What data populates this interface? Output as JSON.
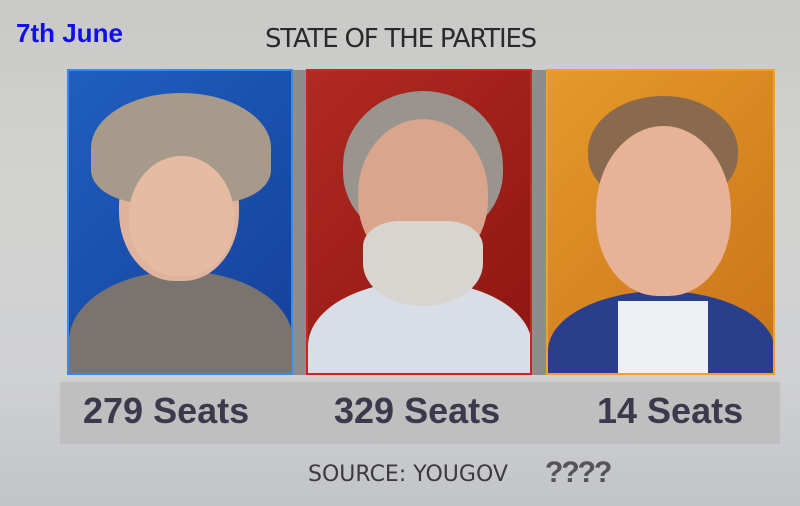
{
  "date_label": "7th June",
  "title": "STATE OF THE PARTIES",
  "panels": [
    {
      "seats": "279 Seats",
      "color": "#1e5fc0"
    },
    {
      "seats": "329 Seats",
      "color": "#b02a22"
    },
    {
      "seats": "14 Seats",
      "color": "#e59a2a"
    }
  ],
  "source": "SOURCE: YOUGOV",
  "overlay": "????"
}
